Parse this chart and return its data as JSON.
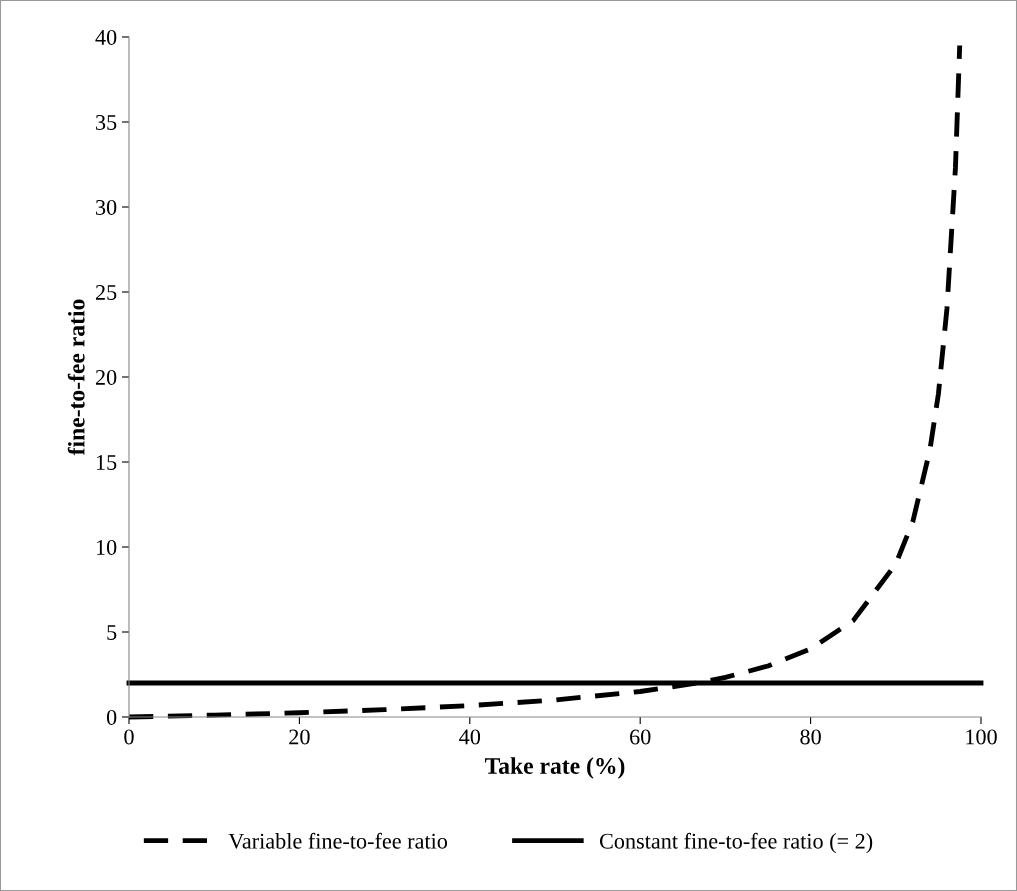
{
  "chart_data": {
    "type": "line",
    "xlabel": "Take rate (%)",
    "ylabel": "fine-to-fee ratio",
    "xlim": [
      0,
      100
    ],
    "xticks": [
      0,
      20,
      40,
      60,
      80,
      100
    ],
    "ylim": [
      0,
      40
    ],
    "yticks": [
      0,
      5,
      10,
      15,
      20,
      25,
      30,
      35,
      40
    ],
    "grid": false,
    "legend": "bottom",
    "marker": "none",
    "series": [
      {
        "name": "Variable fine-to-fee ratio",
        "color": "#000000",
        "line_style": "dashed",
        "x": [
          0,
          10,
          20,
          30,
          40,
          50,
          60,
          66.7,
          70,
          75,
          80,
          85,
          90,
          92,
          94,
          95,
          96,
          97,
          97.5
        ],
        "values": [
          0,
          0.11,
          0.25,
          0.43,
          0.67,
          1,
          1.5,
          2,
          2.33,
          3,
          4,
          5.67,
          9,
          11.5,
          15.7,
          19,
          24,
          32.3,
          39.5
        ]
      },
      {
        "name": "Constant fine-to-fee ratio (= 2)",
        "color": "#000000",
        "line_style": "solid",
        "x": [
          0,
          100
        ],
        "values": [
          2,
          2
        ]
      }
    ]
  }
}
